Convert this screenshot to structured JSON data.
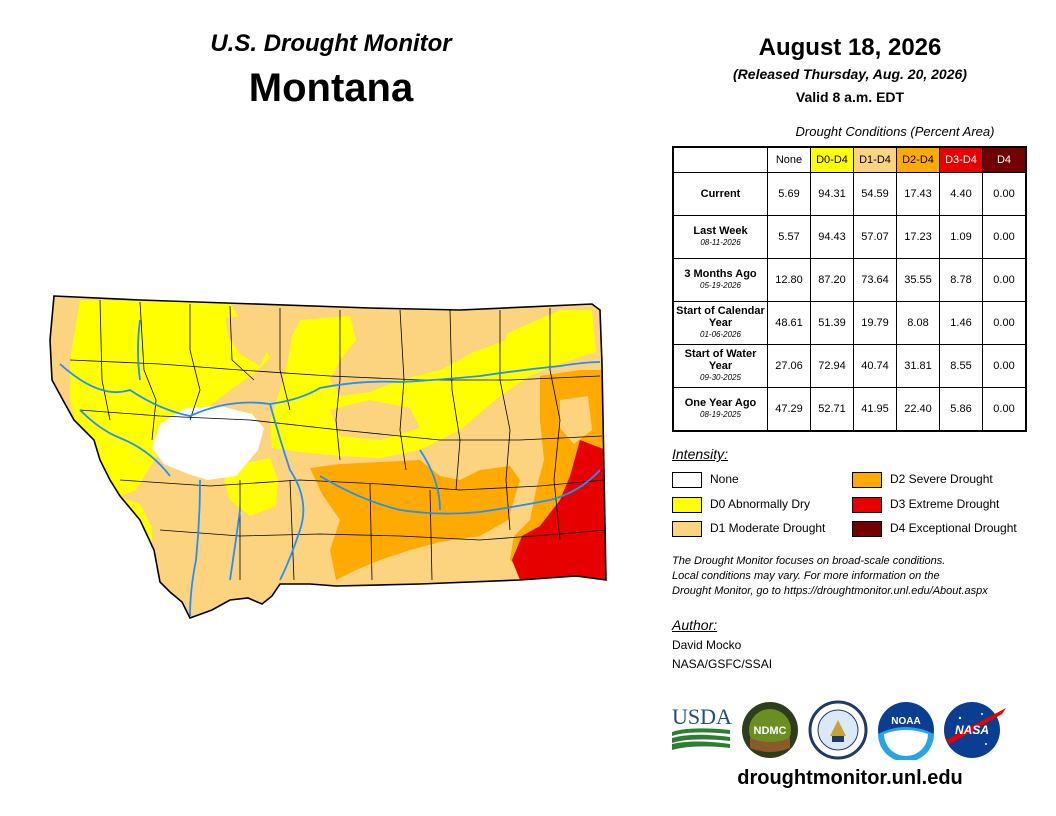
{
  "header": {
    "monitor_title": "U.S. Drought Monitor",
    "state": "Montana",
    "date": "August 18, 2026",
    "released": "(Released Thursday, Aug. 20, 2026)",
    "valid": "Valid 8 a.m. EDT"
  },
  "table": {
    "caption": "Drought Conditions (Percent Area)",
    "columns": [
      "None",
      "D0-D4",
      "D1-D4",
      "D2-D4",
      "D3-D4",
      "D4"
    ],
    "rows": [
      {
        "label": "Current",
        "date": "",
        "values": [
          "5.69",
          "94.31",
          "54.59",
          "17.43",
          "4.40",
          "0.00"
        ]
      },
      {
        "label": "Last Week",
        "date": "08-11-2026",
        "values": [
          "5.57",
          "94.43",
          "57.07",
          "17.23",
          "1.09",
          "0.00"
        ]
      },
      {
        "label": "3 Months Ago",
        "date": "05-19-2026",
        "values": [
          "12.80",
          "87.20",
          "73.64",
          "35.55",
          "8.78",
          "0.00"
        ]
      },
      {
        "label": "Start of Calendar Year",
        "date": "01-06-2026",
        "values": [
          "48.61",
          "51.39",
          "19.79",
          "8.08",
          "1.46",
          "0.00"
        ]
      },
      {
        "label": "Start of Water Year",
        "date": "09-30-2025",
        "values": [
          "27.06",
          "72.94",
          "40.74",
          "31.81",
          "8.55",
          "0.00"
        ]
      },
      {
        "label": "One Year Ago",
        "date": "08-19-2025",
        "values": [
          "47.29",
          "52.71",
          "41.95",
          "22.40",
          "5.86",
          "0.00"
        ]
      }
    ]
  },
  "legend": {
    "title": "Intensity:",
    "items": [
      {
        "label": "None",
        "color": "#ffffff"
      },
      {
        "label": "D0 Abnormally Dry",
        "color": "#ffff00"
      },
      {
        "label": "D1 Moderate Drought",
        "color": "#fcd37f"
      },
      {
        "label": "D2 Severe Drought",
        "color": "#ffaa00"
      },
      {
        "label": "D3 Extreme Drought",
        "color": "#e60000"
      },
      {
        "label": "D4 Exceptional Drought",
        "color": "#730000"
      }
    ]
  },
  "note": {
    "line1": "The Drought Monitor focuses on broad-scale conditions.",
    "line2": "Local conditions may vary. For more information on the",
    "line3": "Drought Monitor, go to https://droughtmonitor.unl.edu/About.aspx"
  },
  "author": {
    "title": "Author:",
    "name": "David Mocko",
    "org": "NASA/GSFC/SSAI"
  },
  "logos": {
    "usda": "USDA",
    "ndmc": "NDMC",
    "noaa": "NOAA",
    "nasa": "NASA"
  },
  "website": "droughtmonitor.unl.edu",
  "colors": {
    "none": "#ffffff",
    "d0": "#ffff00",
    "d1": "#fcd37f",
    "d2": "#ffaa00",
    "d3": "#e60000",
    "d4": "#730000",
    "river": "#1e90ff"
  }
}
